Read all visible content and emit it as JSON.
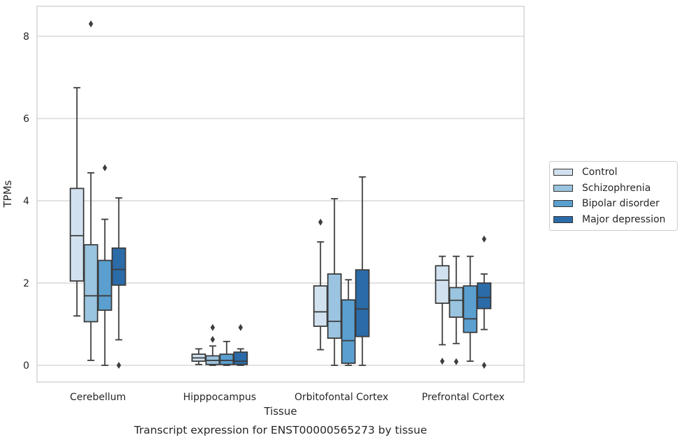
{
  "chart_data": {
    "type": "box",
    "title": "Transcript expression for ENST00000565273 by tissue",
    "xlabel": "Tissue",
    "ylabel": "TPMs",
    "ylim": [
      -0.4,
      8.7
    ],
    "yticks": [
      0,
      2,
      4,
      6,
      8
    ],
    "grid": "horizontal",
    "legend_position": "right",
    "categories": [
      "Cerebellum",
      "Hipppocampus",
      "Orbitofontal Cortex",
      "Prefrontal Cortex"
    ],
    "series": [
      {
        "name": "Control",
        "color": "#d1e1ef",
        "boxes": [
          {
            "whisker_low": 1.2,
            "q1": 2.05,
            "median": 3.15,
            "q3": 4.3,
            "whisker_high": 6.75,
            "outliers": []
          },
          {
            "whisker_low": 0.02,
            "q1": 0.1,
            "median": 0.18,
            "q3": 0.27,
            "whisker_high": 0.4,
            "outliers": []
          },
          {
            "whisker_low": 0.38,
            "q1": 0.95,
            "median": 1.3,
            "q3": 1.93,
            "whisker_high": 3.0,
            "outliers": [
              3.48
            ]
          },
          {
            "whisker_low": 0.5,
            "q1": 1.51,
            "median": 2.07,
            "q3": 2.42,
            "whisker_high": 2.65,
            "outliers": [
              0.1
            ]
          }
        ]
      },
      {
        "name": "Schizophrenia",
        "color": "#9ac4df",
        "boxes": [
          {
            "whisker_low": 0.12,
            "q1": 1.06,
            "median": 1.69,
            "q3": 2.93,
            "whisker_high": 4.68,
            "outliers": [
              8.3
            ]
          },
          {
            "whisker_low": 0.0,
            "q1": 0.02,
            "median": 0.12,
            "q3": 0.23,
            "whisker_high": 0.47,
            "outliers": [
              0.63,
              0.92
            ]
          },
          {
            "whisker_low": 0.0,
            "q1": 0.66,
            "median": 1.07,
            "q3": 2.22,
            "whisker_high": 4.05,
            "outliers": []
          },
          {
            "whisker_low": 0.53,
            "q1": 1.17,
            "median": 1.58,
            "q3": 1.89,
            "whisker_high": 2.65,
            "outliers": [
              0.09
            ]
          }
        ]
      },
      {
        "name": "Bipolar disorder",
        "color": "#5a9fcf",
        "boxes": [
          {
            "whisker_low": 0.0,
            "q1": 1.34,
            "median": 1.69,
            "q3": 2.55,
            "whisker_high": 3.55,
            "outliers": [
              4.8
            ]
          },
          {
            "whisker_low": 0.0,
            "q1": 0.02,
            "median": 0.12,
            "q3": 0.27,
            "whisker_high": 0.58,
            "outliers": []
          },
          {
            "whisker_low": 0.0,
            "q1": 0.05,
            "median": 0.6,
            "q3": 1.59,
            "whisker_high": 2.08,
            "outliers": []
          },
          {
            "whisker_low": 0.1,
            "q1": 0.8,
            "median": 1.13,
            "q3": 1.93,
            "whisker_high": 2.65,
            "outliers": []
          }
        ]
      },
      {
        "name": "Major depression",
        "color": "#2b6ba8",
        "boxes": [
          {
            "whisker_low": 0.62,
            "q1": 1.95,
            "median": 2.33,
            "q3": 2.85,
            "whisker_high": 4.07,
            "outliers": [
              0.0
            ]
          },
          {
            "whisker_low": 0.0,
            "q1": 0.02,
            "median": 0.1,
            "q3": 0.32,
            "whisker_high": 0.4,
            "outliers": [
              0.92
            ]
          },
          {
            "whisker_low": 0.0,
            "q1": 0.7,
            "median": 1.37,
            "q3": 2.32,
            "whisker_high": 4.58,
            "outliers": []
          },
          {
            "whisker_low": 0.87,
            "q1": 1.38,
            "median": 1.65,
            "q3": 2.0,
            "whisker_high": 2.22,
            "outliers": [
              3.07,
              0.0
            ]
          }
        ]
      }
    ]
  }
}
